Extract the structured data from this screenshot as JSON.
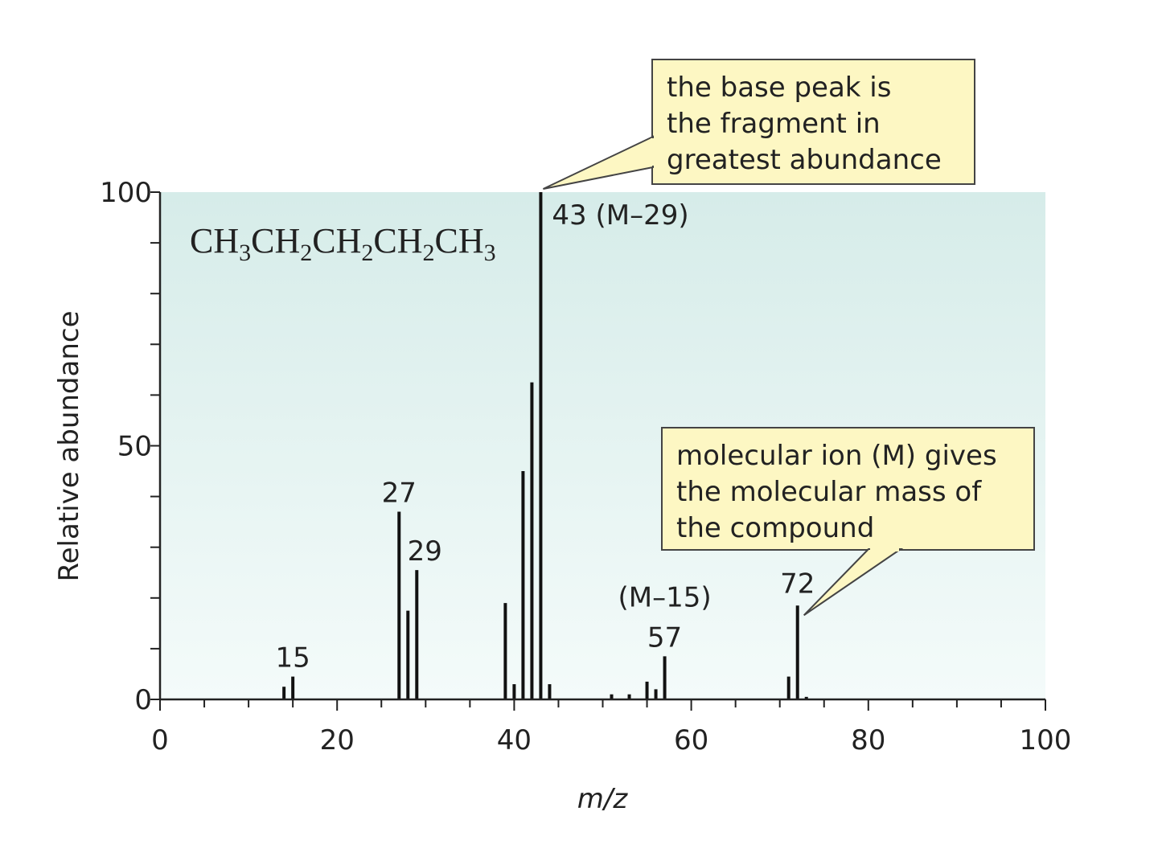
{
  "chart_data": {
    "type": "bar",
    "xlabel": "m/z",
    "ylabel": "Relative abundance",
    "xlim": [
      0,
      100
    ],
    "ylim": [
      0,
      100
    ],
    "x_ticks": [
      0,
      20,
      40,
      60,
      80,
      100
    ],
    "y_ticks": [
      0,
      50,
      100
    ],
    "compound_formula": [
      {
        "t": "CH",
        "sub": false
      },
      {
        "t": "3",
        "sub": true
      },
      {
        "t": "CH",
        "sub": false
      },
      {
        "t": "2",
        "sub": true
      },
      {
        "t": "CH",
        "sub": false
      },
      {
        "t": "2",
        "sub": true
      },
      {
        "t": "CH",
        "sub": false
      },
      {
        "t": "2",
        "sub": true
      },
      {
        "t": "CH",
        "sub": false
      },
      {
        "t": "3",
        "sub": true
      }
    ],
    "peaks": [
      {
        "mz": 14,
        "abundance": 2.5
      },
      {
        "mz": 15,
        "abundance": 4.5
      },
      {
        "mz": 27,
        "abundance": 37
      },
      {
        "mz": 28,
        "abundance": 17.5
      },
      {
        "mz": 29,
        "abundance": 25.5
      },
      {
        "mz": 39,
        "abundance": 19
      },
      {
        "mz": 40,
        "abundance": 3
      },
      {
        "mz": 41,
        "abundance": 45
      },
      {
        "mz": 42,
        "abundance": 62.5
      },
      {
        "mz": 43,
        "abundance": 100
      },
      {
        "mz": 44,
        "abundance": 3
      },
      {
        "mz": 51,
        "abundance": 1
      },
      {
        "mz": 53,
        "abundance": 1
      },
      {
        "mz": 55,
        "abundance": 3.5
      },
      {
        "mz": 56,
        "abundance": 2
      },
      {
        "mz": 57,
        "abundance": 8.5
      },
      {
        "mz": 71,
        "abundance": 4.5
      },
      {
        "mz": 72,
        "abundance": 18.5
      },
      {
        "mz": 73,
        "abundance": 0.5
      }
    ],
    "peak_labels": [
      {
        "mz": 15,
        "text": "15"
      },
      {
        "mz": 27,
        "text": "27"
      },
      {
        "mz": 29,
        "text": "29"
      },
      {
        "mz": 43,
        "text": "43 (M–29)"
      },
      {
        "mz": 57,
        "text": "57"
      },
      {
        "mz": 57,
        "text": "(M–15)"
      },
      {
        "mz": 72,
        "text": "72"
      }
    ],
    "annotations": [
      {
        "target_mz": 43,
        "lines": [
          "the base peak is",
          "the fragment in",
          "greatest abundance"
        ]
      },
      {
        "target_mz": 72,
        "lines": [
          "molecular ion (M) gives",
          "the molecular mass of",
          "the compound"
        ]
      }
    ],
    "background_gradient": [
      "#d6ece9",
      "#f4fbfa"
    ],
    "callout_fill": "#fdf7c3",
    "grid": false
  }
}
